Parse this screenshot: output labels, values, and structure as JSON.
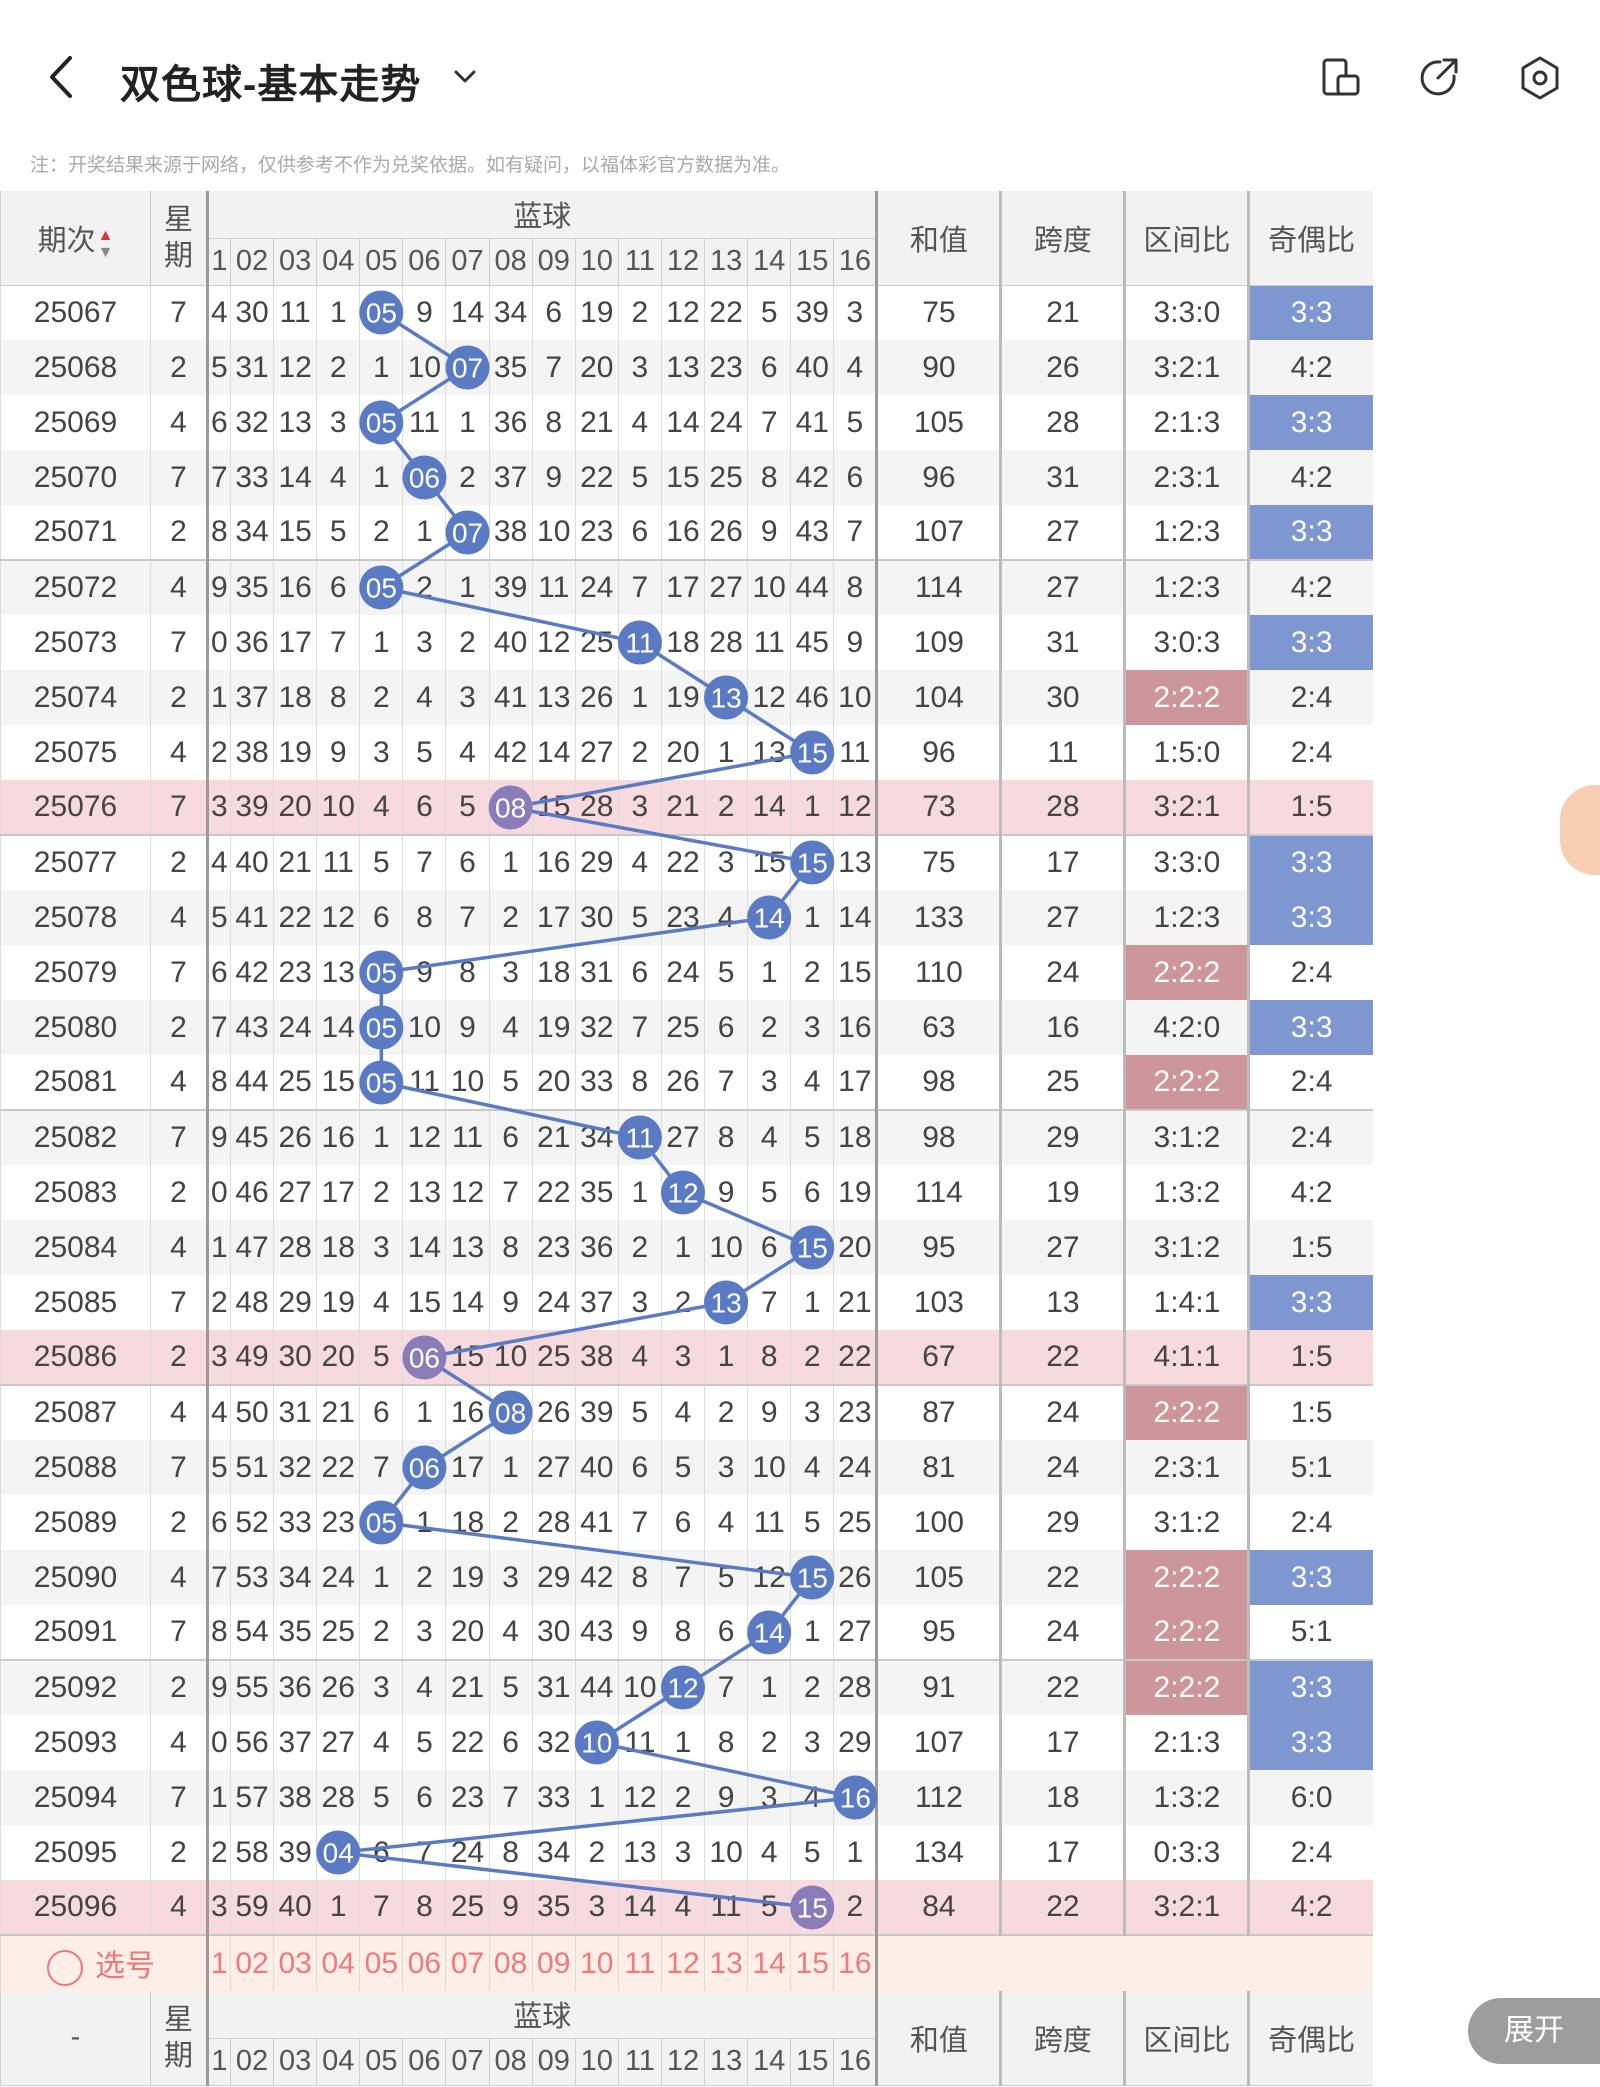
{
  "header": {
    "title": "双色球-基本走势",
    "icons": [
      "back-arrow-icon",
      "dropdown-chevron-icon",
      "device-icon",
      "share-link-icon",
      "settings-gear-icon"
    ]
  },
  "note": "注：开奖结果来源于网络，仅供参考不作为兑奖依据。如有疑问，以福体彩官方数据为准。",
  "table": {
    "col_period": "期次",
    "col_week": "星期",
    "col_group": "蓝球",
    "col_sum": "和值",
    "col_span": "跨度",
    "col_zone": "区间比",
    "col_oddeven": "奇偶比",
    "blue_numbers": [
      "1",
      "02",
      "03",
      "04",
      "05",
      "06",
      "07",
      "08",
      "09",
      "10",
      "11",
      "12",
      "13",
      "14",
      "15",
      "16"
    ],
    "rows": [
      {
        "period": "25067",
        "week": "7",
        "cells": [
          "4",
          "30",
          "11",
          "1",
          "05",
          "9",
          "14",
          "34",
          "6",
          "19",
          "2",
          "12",
          "22",
          "5",
          "39",
          "3"
        ],
        "hit": 5,
        "sum": "75",
        "span": "21",
        "zone": "3:3:0",
        "oe": "3:3",
        "oe_tag": "blue",
        "zone_tag": "",
        "hl": false
      },
      {
        "period": "25068",
        "week": "2",
        "cells": [
          "5",
          "31",
          "12",
          "2",
          "1",
          "10",
          "07",
          "35",
          "7",
          "20",
          "3",
          "13",
          "23",
          "6",
          "40",
          "4"
        ],
        "hit": 7,
        "sum": "90",
        "span": "26",
        "zone": "3:2:1",
        "oe": "4:2",
        "oe_tag": "",
        "zone_tag": "",
        "hl": false
      },
      {
        "period": "25069",
        "week": "4",
        "cells": [
          "6",
          "32",
          "13",
          "3",
          "05",
          "11",
          "1",
          "36",
          "8",
          "21",
          "4",
          "14",
          "24",
          "7",
          "41",
          "5"
        ],
        "hit": 5,
        "sum": "105",
        "span": "28",
        "zone": "2:1:3",
        "oe": "3:3",
        "oe_tag": "blue",
        "zone_tag": "",
        "hl": false
      },
      {
        "period": "25070",
        "week": "7",
        "cells": [
          "7",
          "33",
          "14",
          "4",
          "1",
          "06",
          "2",
          "37",
          "9",
          "22",
          "5",
          "15",
          "25",
          "8",
          "42",
          "6"
        ],
        "hit": 6,
        "sum": "96",
        "span": "31",
        "zone": "2:3:1",
        "oe": "4:2",
        "oe_tag": "",
        "zone_tag": "",
        "hl": false
      },
      {
        "period": "25071",
        "week": "2",
        "cells": [
          "8",
          "34",
          "15",
          "5",
          "2",
          "1",
          "07",
          "38",
          "10",
          "23",
          "6",
          "16",
          "26",
          "9",
          "43",
          "7"
        ],
        "hit": 7,
        "sum": "107",
        "span": "27",
        "zone": "1:2:3",
        "oe": "3:3",
        "oe_tag": "blue",
        "zone_tag": "",
        "hl": false
      },
      {
        "period": "25072",
        "week": "4",
        "cells": [
          "9",
          "35",
          "16",
          "6",
          "05",
          "2",
          "1",
          "39",
          "11",
          "24",
          "7",
          "17",
          "27",
          "10",
          "44",
          "8"
        ],
        "hit": 5,
        "sum": "114",
        "span": "27",
        "zone": "1:2:3",
        "oe": "4:2",
        "oe_tag": "",
        "zone_tag": "",
        "hl": false
      },
      {
        "period": "25073",
        "week": "7",
        "cells": [
          "0",
          "36",
          "17",
          "7",
          "1",
          "3",
          "2",
          "40",
          "12",
          "25",
          "11",
          "18",
          "28",
          "11",
          "45",
          "9"
        ],
        "hit": 11,
        "sum": "109",
        "span": "31",
        "zone": "3:0:3",
        "oe": "3:3",
        "oe_tag": "blue",
        "zone_tag": "",
        "hl": false
      },
      {
        "period": "25074",
        "week": "2",
        "cells": [
          "1",
          "37",
          "18",
          "8",
          "2",
          "4",
          "3",
          "41",
          "13",
          "26",
          "1",
          "19",
          "13",
          "12",
          "46",
          "10"
        ],
        "hit": 13,
        "sum": "104",
        "span": "30",
        "zone": "2:2:2",
        "oe": "2:4",
        "oe_tag": "",
        "zone_tag": "red",
        "hl": false
      },
      {
        "period": "25075",
        "week": "4",
        "cells": [
          "2",
          "38",
          "19",
          "9",
          "3",
          "5",
          "4",
          "42",
          "14",
          "27",
          "2",
          "20",
          "1",
          "13",
          "15",
          "11"
        ],
        "hit": 15,
        "sum": "96",
        "span": "11",
        "zone": "1:5:0",
        "oe": "2:4",
        "oe_tag": "",
        "zone_tag": "",
        "hl": false
      },
      {
        "period": "25076",
        "week": "7",
        "cells": [
          "3",
          "39",
          "20",
          "10",
          "4",
          "6",
          "5",
          "08",
          "15",
          "28",
          "3",
          "21",
          "2",
          "14",
          "1",
          "12"
        ],
        "hit": 8,
        "sum": "73",
        "span": "28",
        "zone": "3:2:1",
        "oe": "1:5",
        "oe_tag": "",
        "zone_tag": "",
        "hl": true
      },
      {
        "period": "25077",
        "week": "2",
        "cells": [
          "4",
          "40",
          "21",
          "11",
          "5",
          "7",
          "6",
          "1",
          "16",
          "29",
          "4",
          "22",
          "3",
          "15",
          "15",
          "13"
        ],
        "hit": 15,
        "sum": "75",
        "span": "17",
        "zone": "3:3:0",
        "oe": "3:3",
        "oe_tag": "blue",
        "zone_tag": "",
        "hl": false
      },
      {
        "period": "25078",
        "week": "4",
        "cells": [
          "5",
          "41",
          "22",
          "12",
          "6",
          "8",
          "7",
          "2",
          "17",
          "30",
          "5",
          "23",
          "4",
          "14",
          "1",
          "14"
        ],
        "hit": 14,
        "sum": "133",
        "span": "27",
        "zone": "1:2:3",
        "oe": "3:3",
        "oe_tag": "blue",
        "zone_tag": "",
        "hl": false
      },
      {
        "period": "25079",
        "week": "7",
        "cells": [
          "6",
          "42",
          "23",
          "13",
          "05",
          "9",
          "8",
          "3",
          "18",
          "31",
          "6",
          "24",
          "5",
          "1",
          "2",
          "15"
        ],
        "hit": 5,
        "sum": "110",
        "span": "24",
        "zone": "2:2:2",
        "oe": "2:4",
        "oe_tag": "",
        "zone_tag": "red",
        "hl": false
      },
      {
        "period": "25080",
        "week": "2",
        "cells": [
          "7",
          "43",
          "24",
          "14",
          "05",
          "10",
          "9",
          "4",
          "19",
          "32",
          "7",
          "25",
          "6",
          "2",
          "3",
          "16"
        ],
        "hit": 5,
        "sum": "63",
        "span": "16",
        "zone": "4:2:0",
        "oe": "3:3",
        "oe_tag": "blue",
        "zone_tag": "",
        "hl": false
      },
      {
        "period": "25081",
        "week": "4",
        "cells": [
          "8",
          "44",
          "25",
          "15",
          "05",
          "11",
          "10",
          "5",
          "20",
          "33",
          "8",
          "26",
          "7",
          "3",
          "4",
          "17"
        ],
        "hit": 5,
        "sum": "98",
        "span": "25",
        "zone": "2:2:2",
        "oe": "2:4",
        "oe_tag": "",
        "zone_tag": "red",
        "hl": false
      },
      {
        "period": "25082",
        "week": "7",
        "cells": [
          "9",
          "45",
          "26",
          "16",
          "1",
          "12",
          "11",
          "6",
          "21",
          "34",
          "11",
          "27",
          "8",
          "4",
          "5",
          "18"
        ],
        "hit": 11,
        "sum": "98",
        "span": "29",
        "zone": "3:1:2",
        "oe": "2:4",
        "oe_tag": "",
        "zone_tag": "",
        "hl": false
      },
      {
        "period": "25083",
        "week": "2",
        "cells": [
          "0",
          "46",
          "27",
          "17",
          "2",
          "13",
          "12",
          "7",
          "22",
          "35",
          "1",
          "12",
          "9",
          "5",
          "6",
          "19"
        ],
        "hit": 12,
        "sum": "114",
        "span": "19",
        "zone": "1:3:2",
        "oe": "4:2",
        "oe_tag": "",
        "zone_tag": "",
        "hl": false
      },
      {
        "period": "25084",
        "week": "4",
        "cells": [
          "1",
          "47",
          "28",
          "18",
          "3",
          "14",
          "13",
          "8",
          "23",
          "36",
          "2",
          "1",
          "10",
          "6",
          "15",
          "20"
        ],
        "hit": 15,
        "sum": "95",
        "span": "27",
        "zone": "3:1:2",
        "oe": "1:5",
        "oe_tag": "",
        "zone_tag": "",
        "hl": false
      },
      {
        "period": "25085",
        "week": "7",
        "cells": [
          "2",
          "48",
          "29",
          "19",
          "4",
          "15",
          "14",
          "9",
          "24",
          "37",
          "3",
          "2",
          "13",
          "7",
          "1",
          "21"
        ],
        "hit": 13,
        "sum": "103",
        "span": "13",
        "zone": "1:4:1",
        "oe": "3:3",
        "oe_tag": "blue",
        "zone_tag": "",
        "hl": false
      },
      {
        "period": "25086",
        "week": "2",
        "cells": [
          "3",
          "49",
          "30",
          "20",
          "5",
          "06",
          "15",
          "10",
          "25",
          "38",
          "4",
          "3",
          "1",
          "8",
          "2",
          "22"
        ],
        "hit": 6,
        "sum": "67",
        "span": "22",
        "zone": "4:1:1",
        "oe": "1:5",
        "oe_tag": "",
        "zone_tag": "",
        "hl": true
      },
      {
        "period": "25087",
        "week": "4",
        "cells": [
          "4",
          "50",
          "31",
          "21",
          "6",
          "1",
          "16",
          "08",
          "26",
          "39",
          "5",
          "4",
          "2",
          "9",
          "3",
          "23"
        ],
        "hit": 8,
        "sum": "87",
        "span": "24",
        "zone": "2:2:2",
        "oe": "1:5",
        "oe_tag": "",
        "zone_tag": "red",
        "hl": false
      },
      {
        "period": "25088",
        "week": "7",
        "cells": [
          "5",
          "51",
          "32",
          "22",
          "7",
          "06",
          "17",
          "1",
          "27",
          "40",
          "6",
          "5",
          "3",
          "10",
          "4",
          "24"
        ],
        "hit": 6,
        "sum": "81",
        "span": "24",
        "zone": "2:3:1",
        "oe": "5:1",
        "oe_tag": "",
        "zone_tag": "",
        "hl": false
      },
      {
        "period": "25089",
        "week": "2",
        "cells": [
          "6",
          "52",
          "33",
          "23",
          "05",
          "1",
          "18",
          "2",
          "28",
          "41",
          "7",
          "6",
          "4",
          "11",
          "5",
          "25"
        ],
        "hit": 5,
        "sum": "100",
        "span": "29",
        "zone": "3:1:2",
        "oe": "2:4",
        "oe_tag": "",
        "zone_tag": "",
        "hl": false
      },
      {
        "period": "25090",
        "week": "4",
        "cells": [
          "7",
          "53",
          "34",
          "24",
          "1",
          "2",
          "19",
          "3",
          "29",
          "42",
          "8",
          "7",
          "5",
          "12",
          "15",
          "26"
        ],
        "hit": 15,
        "sum": "105",
        "span": "22",
        "zone": "2:2:2",
        "oe": "3:3",
        "oe_tag": "blue",
        "zone_tag": "red",
        "hl": false
      },
      {
        "period": "25091",
        "week": "7",
        "cells": [
          "8",
          "54",
          "35",
          "25",
          "2",
          "3",
          "20",
          "4",
          "30",
          "43",
          "9",
          "8",
          "6",
          "14",
          "1",
          "27"
        ],
        "hit": 14,
        "sum": "95",
        "span": "24",
        "zone": "2:2:2",
        "oe": "5:1",
        "oe_tag": "",
        "zone_tag": "red",
        "hl": false
      },
      {
        "period": "25092",
        "week": "2",
        "cells": [
          "9",
          "55",
          "36",
          "26",
          "3",
          "4",
          "21",
          "5",
          "31",
          "44",
          "10",
          "12",
          "7",
          "1",
          "2",
          "28"
        ],
        "hit": 12,
        "sum": "91",
        "span": "22",
        "zone": "2:2:2",
        "oe": "3:3",
        "oe_tag": "blue",
        "zone_tag": "red",
        "hl": false
      },
      {
        "period": "25093",
        "week": "4",
        "cells": [
          "0",
          "56",
          "37",
          "27",
          "4",
          "5",
          "22",
          "6",
          "32",
          "10",
          "11",
          "1",
          "8",
          "2",
          "3",
          "29"
        ],
        "hit": 10,
        "sum": "107",
        "span": "17",
        "zone": "2:1:3",
        "oe": "3:3",
        "oe_tag": "blue",
        "zone_tag": "",
        "hl": false
      },
      {
        "period": "25094",
        "week": "7",
        "cells": [
          "1",
          "57",
          "38",
          "28",
          "5",
          "6",
          "23",
          "7",
          "33",
          "1",
          "12",
          "2",
          "9",
          "3",
          "4",
          "16"
        ],
        "hit": 16,
        "sum": "112",
        "span": "18",
        "zone": "1:3:2",
        "oe": "6:0",
        "oe_tag": "",
        "zone_tag": "",
        "hl": false
      },
      {
        "period": "25095",
        "week": "2",
        "cells": [
          "2",
          "58",
          "39",
          "04",
          "6",
          "7",
          "24",
          "8",
          "34",
          "2",
          "13",
          "3",
          "10",
          "4",
          "5",
          "1"
        ],
        "hit": 4,
        "sum": "134",
        "span": "17",
        "zone": "0:3:3",
        "oe": "2:4",
        "oe_tag": "",
        "zone_tag": "",
        "hl": false
      },
      {
        "period": "25096",
        "week": "4",
        "cells": [
          "3",
          "59",
          "40",
          "1",
          "7",
          "8",
          "25",
          "9",
          "35",
          "3",
          "14",
          "4",
          "11",
          "5",
          "15",
          "2"
        ],
        "hit": 15,
        "sum": "84",
        "span": "22",
        "zone": "3:2:1",
        "oe": "4:2",
        "oe_tag": "",
        "zone_tag": "",
        "hl": true
      }
    ],
    "pick_label": "选号",
    "footer_period": "-"
  },
  "colors": {
    "hit_ball": "#5a7bc4",
    "hit_ball_hl": "#8a7cb8",
    "line": "#5a7bc4",
    "tag_blue": "#7f97d0",
    "tag_red": "#cc969a",
    "row_highlight": "#f7dadd"
  },
  "expand_label": "展开"
}
